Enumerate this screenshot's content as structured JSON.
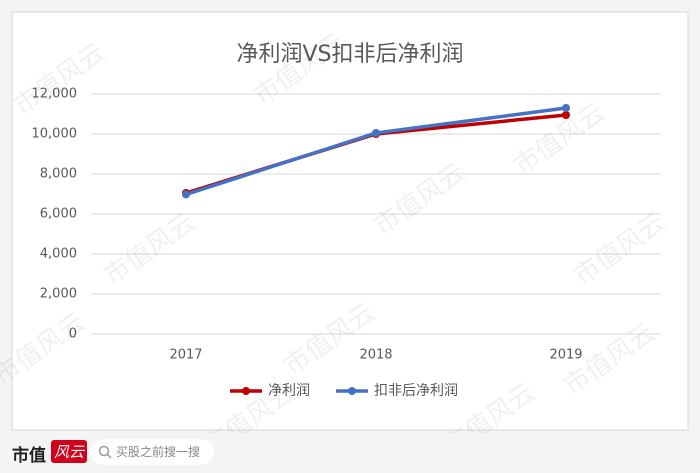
{
  "chart_data": {
    "type": "line",
    "title": "净利润VS扣非后净利润",
    "categories": [
      "2017",
      "2018",
      "2019"
    ],
    "series": [
      {
        "name": "净利润",
        "color": "#c00000",
        "values": [
          7050,
          10000,
          10950
        ]
      },
      {
        "name": "扣非后净利润",
        "color": "#4472c4",
        "values": [
          6980,
          10050,
          11300
        ]
      }
    ],
    "ylim": [
      0,
      12000
    ],
    "yticks": [
      0,
      {
        "value": 2000,
        "label": "2,000"
      },
      {
        "value": 4000,
        "label": "4,000"
      },
      {
        "value": 6000,
        "label": "6,000"
      },
      {
        "value": 8000,
        "label": "8,000"
      },
      {
        "value": 10000,
        "label": "10,000"
      },
      {
        "value": 12000,
        "label": "12,000"
      }
    ],
    "grid": true,
    "legend": "bottom"
  },
  "watermark": "市值风云",
  "footer": {
    "brand": "市值",
    "brand_mark": "风云",
    "search": "买股之前搜一搜"
  }
}
